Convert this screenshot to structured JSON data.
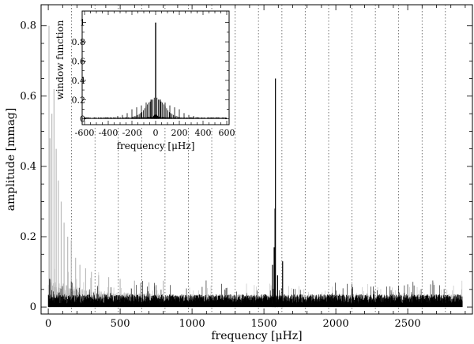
{
  "chart_data": [
    {
      "type": "line",
      "xlabel": "frequency [μHz]",
      "ylabel": "amplitude [mmag]",
      "xlim": [
        -50,
        2950
      ],
      "ylim": [
        -0.02,
        0.86
      ],
      "x_ticks": [
        0,
        500,
        1000,
        1500,
        2000,
        2500
      ],
      "x_tick_labels": [
        "0",
        "500",
        "1000",
        "1500",
        "2000",
        "2500"
      ],
      "y_ticks": [
        0,
        0.2,
        0.4,
        0.6,
        0.8
      ],
      "y_tick_labels": [
        "0",
        "0.2",
        "0.4",
        "0.6",
        "0.8"
      ],
      "grid": false,
      "harmonic_markers": [
        162,
        325,
        487,
        650,
        812,
        975,
        1137,
        1300,
        1462,
        1625,
        1787,
        1950,
        2112,
        2275,
        2437,
        2600,
        2762
      ],
      "series": [
        {
          "color": "#bbbbbb",
          "x_range": [
            0,
            2880
          ],
          "noise_level": 0.03,
          "peaks": [
            {
              "x": 5,
              "y": 0.8
            },
            {
              "x": 12,
              "y": 0.48
            },
            {
              "x": 25,
              "y": 0.55
            },
            {
              "x": 40,
              "y": 0.62
            },
            {
              "x": 55,
              "y": 0.45
            },
            {
              "x": 70,
              "y": 0.36
            },
            {
              "x": 90,
              "y": 0.3
            },
            {
              "x": 110,
              "y": 0.24
            },
            {
              "x": 135,
              "y": 0.2
            },
            {
              "x": 160,
              "y": 0.19
            },
            {
              "x": 190,
              "y": 0.14
            },
            {
              "x": 220,
              "y": 0.12
            },
            {
              "x": 260,
              "y": 0.11
            },
            {
              "x": 300,
              "y": 0.1
            },
            {
              "x": 350,
              "y": 0.09
            },
            {
              "x": 420,
              "y": 0.085
            },
            {
              "x": 500,
              "y": 0.08
            },
            {
              "x": 600,
              "y": 0.075
            },
            {
              "x": 700,
              "y": 0.07
            },
            {
              "x": 800,
              "y": 0.075
            }
          ]
        },
        {
          "color": "#000000",
          "x_range": [
            0,
            2880
          ],
          "noise_level": 0.03,
          "peaks": [
            {
              "x": 1580,
              "y": 0.65
            },
            {
              "x": 1577,
              "y": 0.28
            },
            {
              "x": 1571,
              "y": 0.17
            },
            {
              "x": 1560,
              "y": 0.12
            },
            {
              "x": 1630,
              "y": 0.13
            },
            {
              "x": 1595,
              "y": 0.09
            },
            {
              "x": 10,
              "y": 0.08
            }
          ]
        }
      ]
    },
    {
      "type": "line",
      "xlabel": "frequency [μHz]",
      "ylabel": "window function",
      "xlim": [
        -620,
        620
      ],
      "ylim": [
        -0.06,
        1.12
      ],
      "x_ticks": [
        -600,
        -400,
        -200,
        0,
        200,
        400,
        600
      ],
      "x_tick_labels": [
        "-600",
        "-400",
        "-200",
        "0",
        "200",
        "400",
        "600"
      ],
      "y_ticks": [
        0,
        0.2,
        0.4,
        0.6,
        0.8,
        1
      ],
      "y_tick_labels": [
        "0",
        "0.2",
        "0.4",
        "0.6",
        "0.8",
        "1"
      ],
      "grid": false,
      "series": [
        {
          "color": "#000000",
          "peaks": [
            {
              "x": 0,
              "y": 1.0
            },
            {
              "x": -11.6,
              "y": 0.22
            },
            {
              "x": 11.6,
              "y": 0.22
            },
            {
              "x": -23.2,
              "y": 0.2
            },
            {
              "x": 23.2,
              "y": 0.2
            },
            {
              "x": -34.7,
              "y": 0.2
            },
            {
              "x": 34.7,
              "y": 0.2
            },
            {
              "x": -46.3,
              "y": 0.18
            },
            {
              "x": 46.3,
              "y": 0.18
            },
            {
              "x": -57.9,
              "y": 0.17
            },
            {
              "x": 57.9,
              "y": 0.17
            },
            {
              "x": -69.4,
              "y": 0.15
            },
            {
              "x": 69.4,
              "y": 0.15
            },
            {
              "x": -81.0,
              "y": 0.13
            },
            {
              "x": 81.0,
              "y": 0.13
            },
            {
              "x": -92.6,
              "y": 0.11
            },
            {
              "x": 92.6,
              "y": 0.11
            },
            {
              "x": -104.2,
              "y": 0.09
            },
            {
              "x": 104.2,
              "y": 0.09
            },
            {
              "x": -115.7,
              "y": 0.07
            },
            {
              "x": 115.7,
              "y": 0.07
            },
            {
              "x": -127.3,
              "y": 0.06
            },
            {
              "x": 127.3,
              "y": 0.06
            },
            {
              "x": -138.9,
              "y": 0.05
            },
            {
              "x": 138.9,
              "y": 0.05
            },
            {
              "x": -150.5,
              "y": 0.04
            },
            {
              "x": 150.5,
              "y": 0.04
            },
            {
              "x": -162.0,
              "y": 0.035
            },
            {
              "x": 162.0,
              "y": 0.035
            },
            {
              "x": -173.6,
              "y": 0.03
            },
            {
              "x": 173.6,
              "y": 0.03
            },
            {
              "x": -185.2,
              "y": 0.025
            },
            {
              "x": 185.2,
              "y": 0.025
            },
            {
              "x": -196.7,
              "y": 0.02
            },
            {
              "x": 196.7,
              "y": 0.02
            }
          ],
          "side_peaks": [
            {
              "x": -200,
              "y": 0.1
            },
            {
              "x": -160,
              "y": 0.12
            },
            {
              "x": -120,
              "y": 0.14
            },
            {
              "x": -80,
              "y": 0.17
            },
            {
              "x": -40,
              "y": 0.2
            },
            {
              "x": 40,
              "y": 0.2
            },
            {
              "x": 80,
              "y": 0.17
            },
            {
              "x": 120,
              "y": 0.14
            },
            {
              "x": 160,
              "y": 0.12
            },
            {
              "x": 200,
              "y": 0.1
            },
            {
              "x": -240,
              "y": 0.06
            },
            {
              "x": 240,
              "y": 0.06
            },
            {
              "x": -280,
              "y": 0.04
            },
            {
              "x": 280,
              "y": 0.04
            },
            {
              "x": -320,
              "y": 0.03
            },
            {
              "x": 320,
              "y": 0.03
            }
          ]
        }
      ]
    }
  ]
}
